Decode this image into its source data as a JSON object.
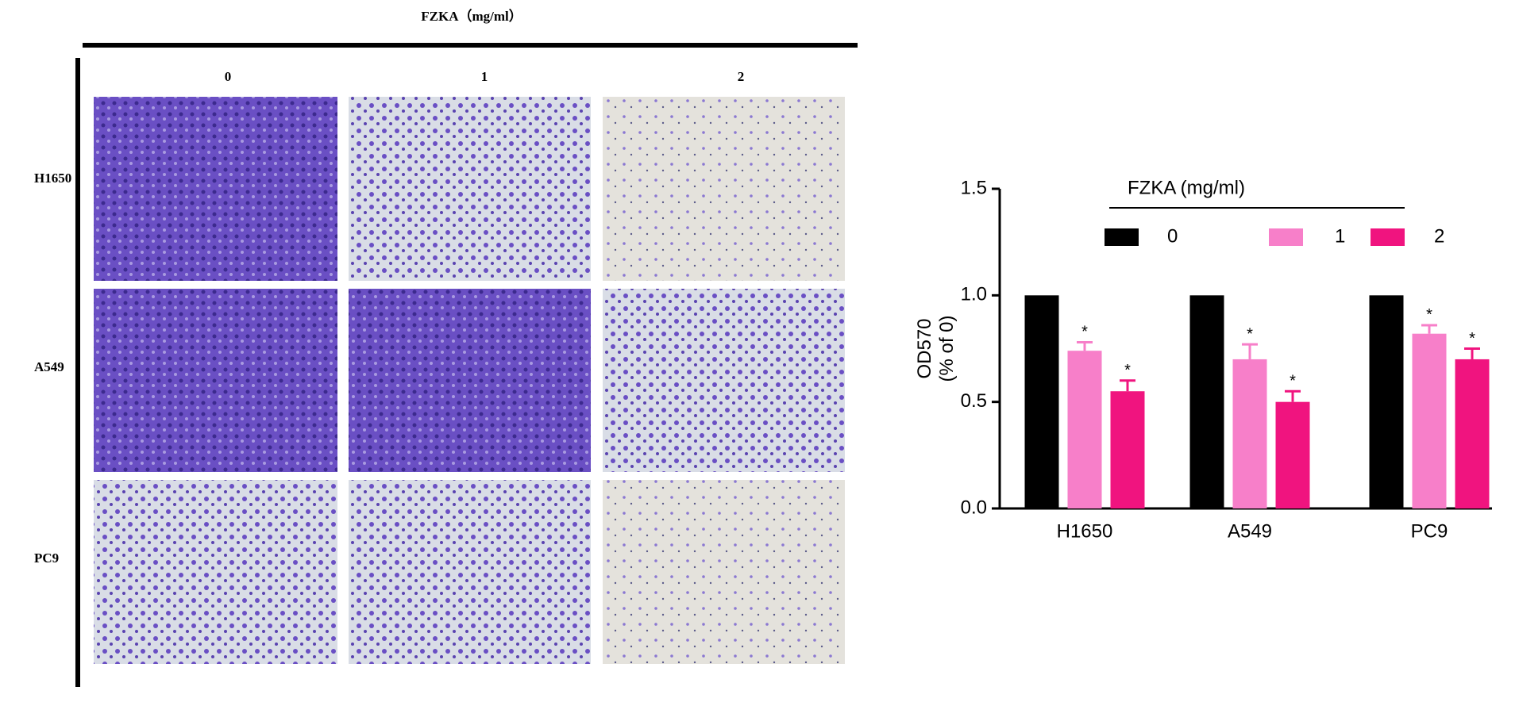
{
  "image_panel": {
    "title": "FZKA（mg/ml）",
    "columns": [
      "0",
      "1",
      "2"
    ],
    "rows": [
      "H1650",
      "A549",
      "PC9"
    ]
  },
  "chart_data": {
    "type": "bar",
    "ylabel": [
      "OD570",
      "(% of 0)"
    ],
    "legend_title": "FZKA (mg/ml)",
    "categories": [
      "H1650",
      "A549",
      "PC9"
    ],
    "series": [
      {
        "name": "0",
        "color": "#000000",
        "values": [
          1.0,
          1.0,
          1.0
        ]
      },
      {
        "name": "1",
        "color": "#f77fc9",
        "values": [
          0.74,
          0.7,
          0.82
        ],
        "errors": [
          0.04,
          0.07,
          0.04
        ],
        "significance": [
          "*",
          "*",
          "*"
        ]
      },
      {
        "name": "2",
        "color": "#f0147f",
        "values": [
          0.55,
          0.5,
          0.7
        ],
        "errors": [
          0.05,
          0.05,
          0.05
        ],
        "significance": [
          "*",
          "*",
          "*"
        ]
      }
    ],
    "ylim": [
      0,
      1.5
    ],
    "yticks": [
      {
        "value": 0,
        "label": "0.0"
      },
      {
        "value": 0.5,
        "label": "0.5"
      },
      {
        "value": 1,
        "label": "1.0"
      },
      {
        "value": 1.5,
        "label": "1.5"
      }
    ]
  }
}
